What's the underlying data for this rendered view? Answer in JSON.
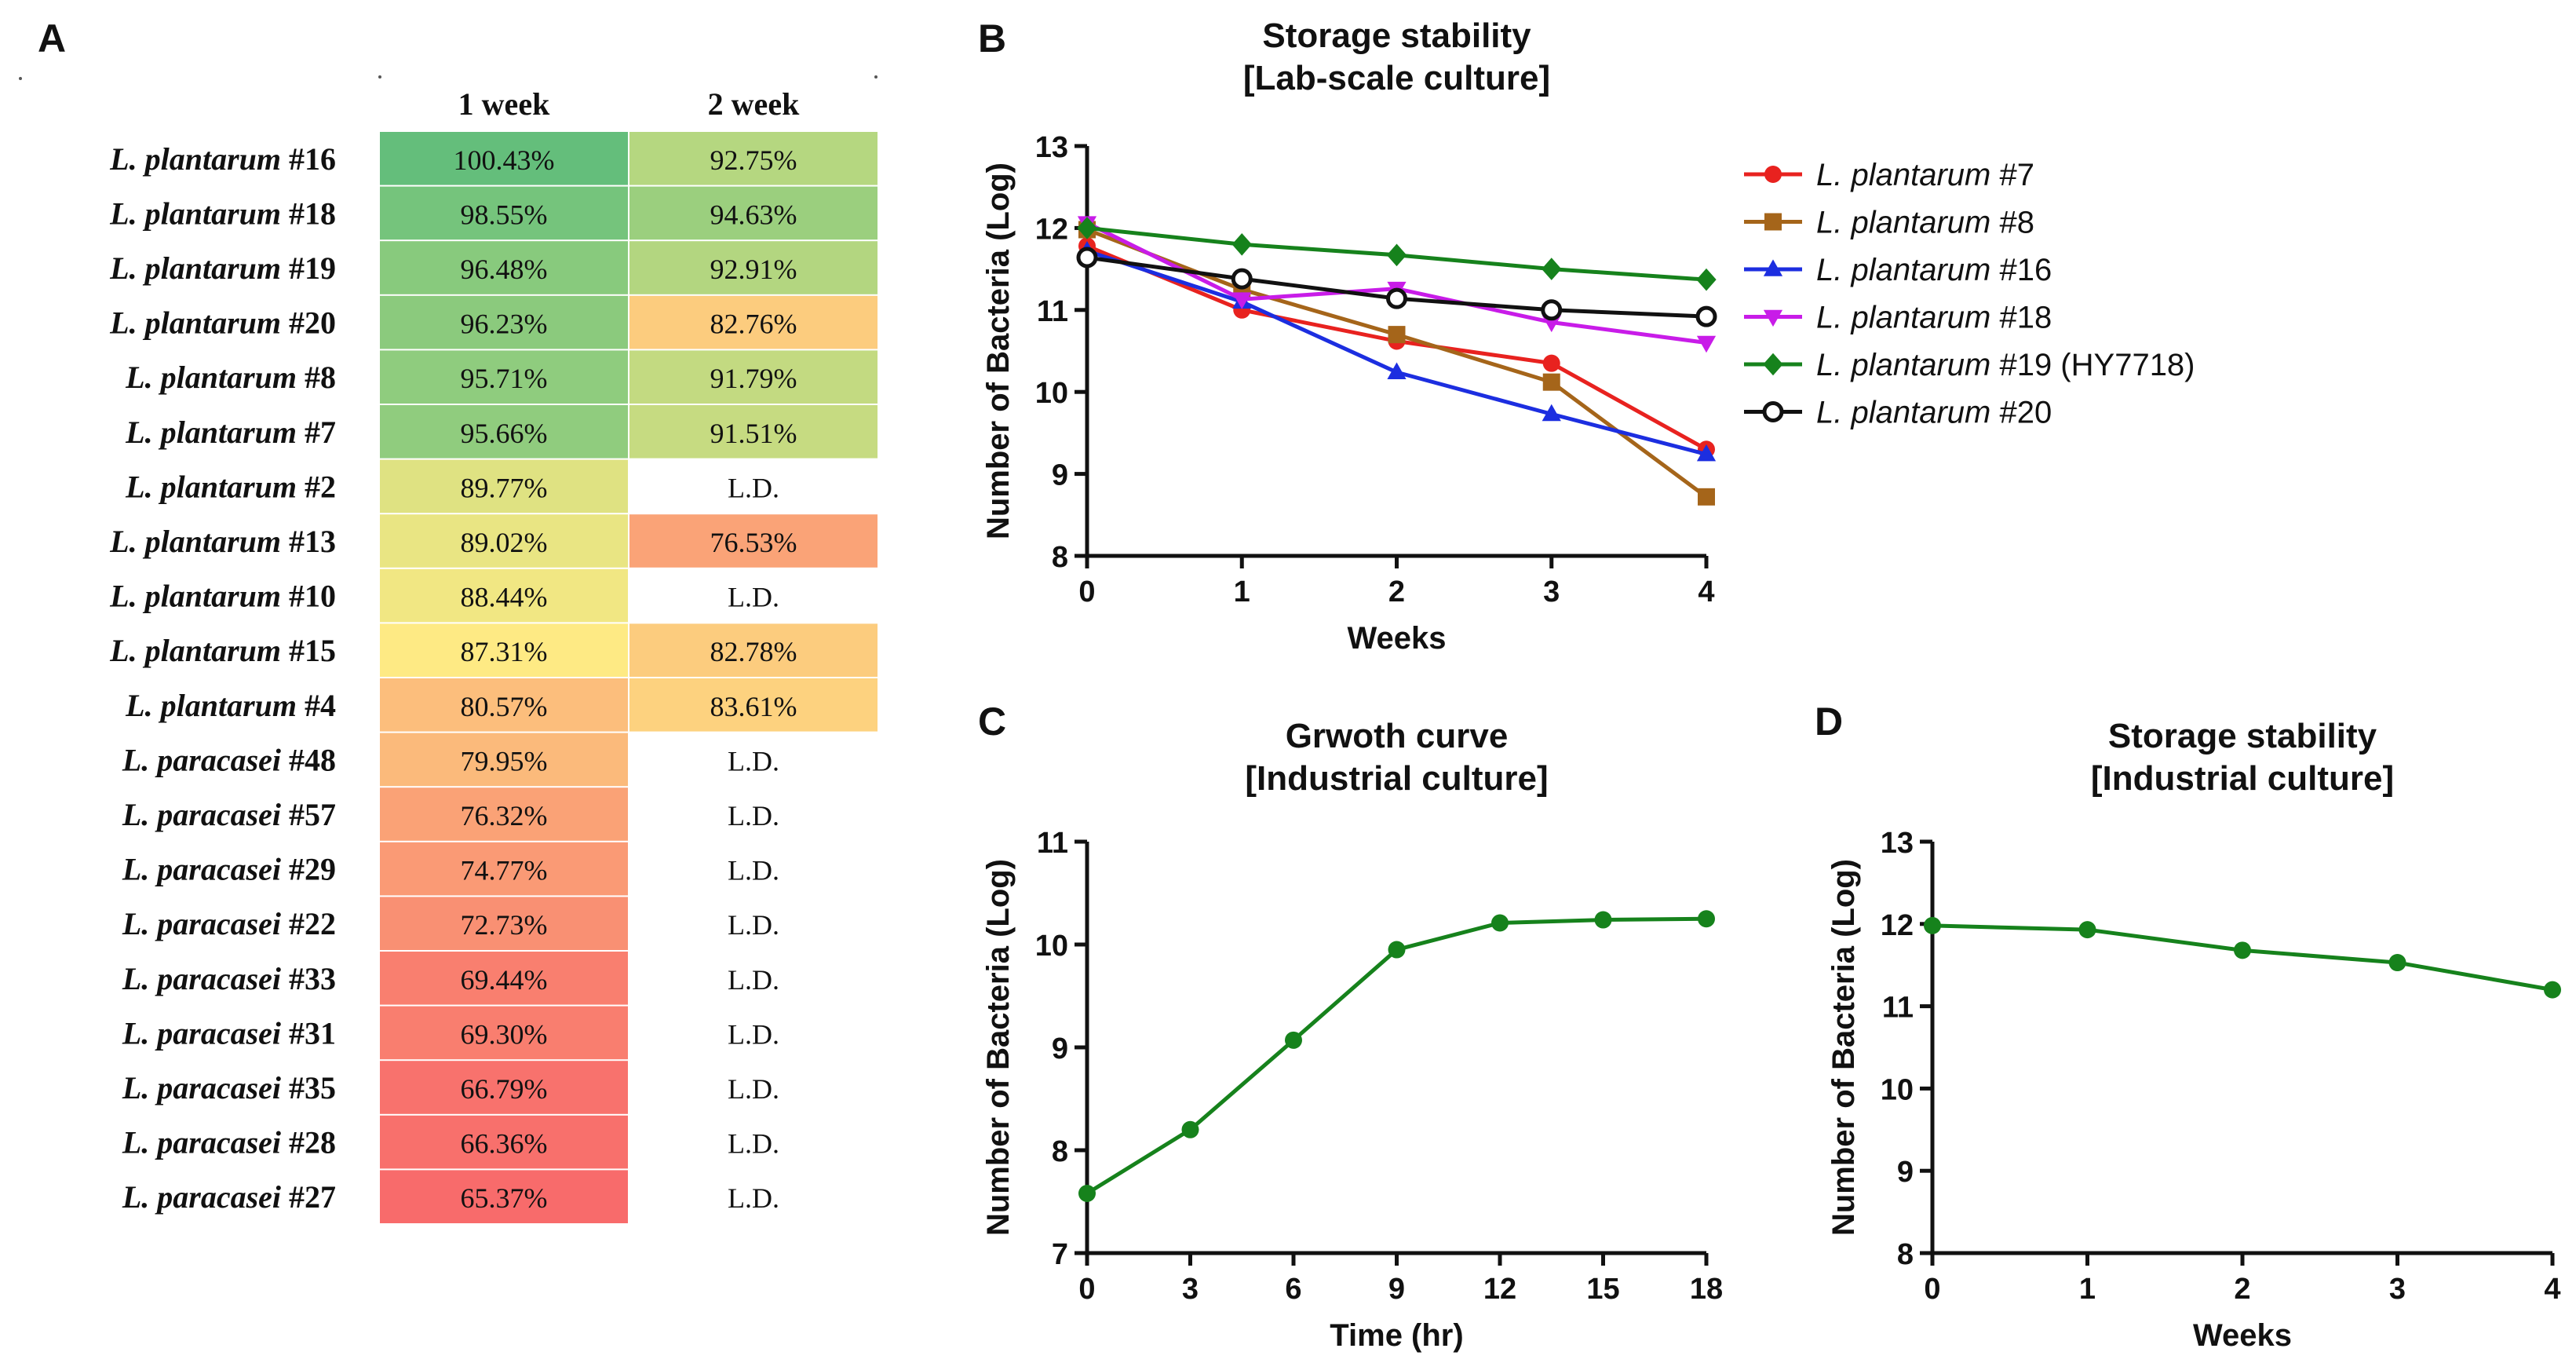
{
  "panels": {
    "A": "A",
    "B": "B",
    "C": "C",
    "D": "D"
  },
  "heatmap": {
    "columns": [
      "1 week",
      "2 week"
    ],
    "rows": [
      {
        "species": "L. plantarum",
        "strain": "#16",
        "w1": "100.43%",
        "w2": "92.75%",
        "w1_val": 100.43,
        "w2_val": 92.75
      },
      {
        "species": "L. plantarum",
        "strain": "#18",
        "w1": "98.55%",
        "w2": "94.63%",
        "w1_val": 98.55,
        "w2_val": 94.63
      },
      {
        "species": "L. plantarum",
        "strain": "#19",
        "w1": "96.48%",
        "w2": "92.91%",
        "w1_val": 96.48,
        "w2_val": 92.91
      },
      {
        "species": "L. plantarum",
        "strain": "#20",
        "w1": "96.23%",
        "w2": "82.76%",
        "w1_val": 96.23,
        "w2_val": 82.76
      },
      {
        "species": "L. plantarum",
        "strain": "#8",
        "w1": "95.71%",
        "w2": "91.79%",
        "w1_val": 95.71,
        "w2_val": 91.79
      },
      {
        "species": "L. plantarum",
        "strain": "#7",
        "w1": "95.66%",
        "w2": "91.51%",
        "w1_val": 95.66,
        "w2_val": 91.51
      },
      {
        "species": "L. plantarum",
        "strain": "#2",
        "w1": "89.77%",
        "w2": "L.D.",
        "w1_val": 89.77,
        "w2_val": null
      },
      {
        "species": "L. plantarum",
        "strain": "#13",
        "w1": "89.02%",
        "w2": "76.53%",
        "w1_val": 89.02,
        "w2_val": 76.53
      },
      {
        "species": "L. plantarum",
        "strain": "#10",
        "w1": "88.44%",
        "w2": "L.D.",
        "w1_val": 88.44,
        "w2_val": null
      },
      {
        "species": "L. plantarum",
        "strain": "#15",
        "w1": "87.31%",
        "w2": "82.78%",
        "w1_val": 87.31,
        "w2_val": 82.78
      },
      {
        "species": "L. plantarum",
        "strain": "#4",
        "w1": "80.57%",
        "w2": "83.61%",
        "w1_val": 80.57,
        "w2_val": 83.61
      },
      {
        "species": "L. paracasei",
        "strain": "#48",
        "w1": "79.95%",
        "w2": "L.D.",
        "w1_val": 79.95,
        "w2_val": null
      },
      {
        "species": "L. paracasei",
        "strain": "#57",
        "w1": "76.32%",
        "w2": "L.D.",
        "w1_val": 76.32,
        "w2_val": null
      },
      {
        "species": "L. paracasei",
        "strain": "#29",
        "w1": "74.77%",
        "w2": "L.D.",
        "w1_val": 74.77,
        "w2_val": null
      },
      {
        "species": "L. paracasei",
        "strain": "#22",
        "w1": "72.73%",
        "w2": "L.D.",
        "w1_val": 72.73,
        "w2_val": null
      },
      {
        "species": "L. paracasei",
        "strain": "#33",
        "w1": "69.44%",
        "w2": "L.D.",
        "w1_val": 69.44,
        "w2_val": null
      },
      {
        "species": "L. paracasei",
        "strain": "#31",
        "w1": "69.30%",
        "w2": "L.D.",
        "w1_val": 69.3,
        "w2_val": null
      },
      {
        "species": "L. paracasei",
        "strain": "#35",
        "w1": "66.79%",
        "w2": "L.D.",
        "w1_val": 66.79,
        "w2_val": null
      },
      {
        "species": "L. paracasei",
        "strain": "#28",
        "w1": "66.36%",
        "w2": "L.D.",
        "w1_val": 66.36,
        "w2_val": null
      },
      {
        "species": "L. paracasei",
        "strain": "#27",
        "w1": "65.37%",
        "w2": "L.D.",
        "w1_val": 65.37,
        "w2_val": null
      }
    ]
  },
  "chart_data": [
    {
      "id": "B",
      "type": "line",
      "title": "Storage stability",
      "subtitle": "[Lab-scale culture]",
      "xlabel": "Weeks",
      "ylabel": "Number of Bacteria  (Log)",
      "xlim": [
        0,
        4
      ],
      "ylim": [
        8,
        13
      ],
      "xticks": [
        0,
        1,
        2,
        3,
        4
      ],
      "yticks": [
        8,
        9,
        10,
        11,
        12,
        13
      ],
      "legend": "top-right",
      "series": [
        {
          "name_species": "L. plantarum",
          "name_strain": "#7",
          "color": "#e8221f",
          "marker": "circle",
          "values": [
            11.78,
            11.0,
            10.62,
            10.35,
            9.3
          ]
        },
        {
          "name_species": "L. plantarum",
          "name_strain": "#8",
          "color": "#a5651a",
          "marker": "square",
          "values": [
            11.98,
            11.25,
            10.7,
            10.12,
            8.72
          ]
        },
        {
          "name_species": "L. plantarum",
          "name_strain": "#16",
          "color": "#1c2ee0",
          "marker": "triangle-up",
          "values": [
            11.72,
            11.1,
            10.24,
            9.73,
            9.24
          ]
        },
        {
          "name_species": "L. plantarum",
          "name_strain": "#18",
          "color": "#c81ce8",
          "marker": "triangle-down",
          "values": [
            12.06,
            11.13,
            11.26,
            10.85,
            10.6
          ]
        },
        {
          "name_species": "L. plantarum",
          "name_strain": "#19 (HY7718)",
          "color": "#16821c",
          "marker": "diamond",
          "values": [
            12.0,
            11.8,
            11.67,
            11.5,
            11.37
          ]
        },
        {
          "name_species": "L. plantarum",
          "name_strain": "#20",
          "color": "#111111",
          "marker": "open-circle",
          "values": [
            11.64,
            11.38,
            11.14,
            11.0,
            10.92
          ]
        }
      ]
    },
    {
      "id": "C",
      "type": "line",
      "title": "Grwoth curve",
      "subtitle": "[Industrial culture]",
      "xlabel": "Time (hr)",
      "ylabel": "Number of Bacteria  (Log)",
      "xlim": [
        0,
        18
      ],
      "ylim": [
        7,
        11
      ],
      "xticks": [
        0,
        3,
        6,
        9,
        12,
        15,
        18
      ],
      "yticks": [
        7,
        8,
        9,
        10,
        11
      ],
      "series": [
        {
          "name": "Growth",
          "color": "#16821c",
          "marker": "circle",
          "x": [
            0,
            3,
            6,
            9,
            12,
            15,
            18
          ],
          "values": [
            7.58,
            8.2,
            9.07,
            9.95,
            10.21,
            10.24,
            10.25
          ]
        }
      ]
    },
    {
      "id": "D",
      "type": "line",
      "title": "Storage stability",
      "subtitle": "[Industrial culture]",
      "xlabel": "Weeks",
      "ylabel": "Number of Bacteria  (Log)",
      "xlim": [
        0,
        4
      ],
      "ylim": [
        8,
        13
      ],
      "xticks": [
        0,
        1,
        2,
        3,
        4
      ],
      "yticks": [
        8,
        9,
        10,
        11,
        12,
        13
      ],
      "series": [
        {
          "name": "Storage",
          "color": "#16821c",
          "marker": "circle",
          "x": [
            0,
            1,
            2,
            3,
            4
          ],
          "values": [
            11.98,
            11.93,
            11.68,
            11.53,
            11.2
          ]
        }
      ]
    }
  ]
}
